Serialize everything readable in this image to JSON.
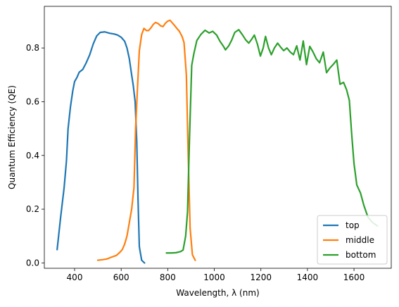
{
  "chart_data": {
    "type": "line",
    "title": "",
    "xlabel": "Wavelength, λ (nm)",
    "ylabel": "Quantum Efficiency (QE)",
    "xlim": [
      270,
      1760
    ],
    "ylim": [
      -0.02,
      0.955
    ],
    "xticks": [
      400,
      600,
      800,
      1000,
      1200,
      1400,
      1600
    ],
    "yticks": [
      0.0,
      0.2,
      0.4,
      0.6,
      0.8
    ],
    "xtick_labels": [
      "400",
      "600",
      "800",
      "1000",
      "1200",
      "1400",
      "1600"
    ],
    "ytick_labels": [
      "0.0",
      "0.2",
      "0.4",
      "0.6",
      "0.8"
    ],
    "grid": false,
    "legend_position": "lower-right",
    "series": [
      {
        "name": "top",
        "color": "#1f77b4",
        "points": [
          [
            325,
            0.05
          ],
          [
            340,
            0.17
          ],
          [
            355,
            0.28
          ],
          [
            365,
            0.38
          ],
          [
            372,
            0.5
          ],
          [
            382,
            0.58
          ],
          [
            392,
            0.64
          ],
          [
            400,
            0.675
          ],
          [
            410,
            0.69
          ],
          [
            420,
            0.71
          ],
          [
            435,
            0.72
          ],
          [
            450,
            0.745
          ],
          [
            465,
            0.775
          ],
          [
            480,
            0.815
          ],
          [
            495,
            0.845
          ],
          [
            510,
            0.858
          ],
          [
            530,
            0.86
          ],
          [
            550,
            0.855
          ],
          [
            570,
            0.852
          ],
          [
            585,
            0.848
          ],
          [
            600,
            0.84
          ],
          [
            615,
            0.825
          ],
          [
            625,
            0.8
          ],
          [
            635,
            0.76
          ],
          [
            645,
            0.7
          ],
          [
            652,
            0.66
          ],
          [
            660,
            0.6
          ],
          [
            667,
            0.45
          ],
          [
            672,
            0.25
          ],
          [
            678,
            0.06
          ],
          [
            688,
            0.01
          ],
          [
            700,
            0.0
          ]
        ]
      },
      {
        "name": "middle",
        "color": "#ff7f0e",
        "points": [
          [
            500,
            0.01
          ],
          [
            520,
            0.012
          ],
          [
            540,
            0.015
          ],
          [
            560,
            0.022
          ],
          [
            580,
            0.028
          ],
          [
            595,
            0.04
          ],
          [
            605,
            0.05
          ],
          [
            615,
            0.07
          ],
          [
            625,
            0.1
          ],
          [
            635,
            0.15
          ],
          [
            645,
            0.2
          ],
          [
            655,
            0.28
          ],
          [
            662,
            0.5
          ],
          [
            670,
            0.65
          ],
          [
            678,
            0.79
          ],
          [
            688,
            0.85
          ],
          [
            698,
            0.873
          ],
          [
            708,
            0.865
          ],
          [
            718,
            0.865
          ],
          [
            728,
            0.875
          ],
          [
            738,
            0.888
          ],
          [
            748,
            0.895
          ],
          [
            760,
            0.89
          ],
          [
            770,
            0.882
          ],
          [
            780,
            0.88
          ],
          [
            790,
            0.892
          ],
          [
            800,
            0.9
          ],
          [
            810,
            0.903
          ],
          [
            820,
            0.893
          ],
          [
            830,
            0.883
          ],
          [
            840,
            0.872
          ],
          [
            850,
            0.862
          ],
          [
            862,
            0.842
          ],
          [
            870,
            0.82
          ],
          [
            880,
            0.7
          ],
          [
            888,
            0.4
          ],
          [
            896,
            0.13
          ],
          [
            906,
            0.03
          ],
          [
            918,
            0.01
          ]
        ]
      },
      {
        "name": "bottom",
        "color": "#2ca02c",
        "points": [
          [
            795,
            0.037
          ],
          [
            815,
            0.037
          ],
          [
            835,
            0.038
          ],
          [
            855,
            0.042
          ],
          [
            866,
            0.048
          ],
          [
            877,
            0.1
          ],
          [
            885,
            0.19
          ],
          [
            893,
            0.45
          ],
          [
            903,
            0.735
          ],
          [
            912,
            0.778
          ],
          [
            925,
            0.828
          ],
          [
            942,
            0.85
          ],
          [
            960,
            0.866
          ],
          [
            978,
            0.856
          ],
          [
            993,
            0.862
          ],
          [
            1010,
            0.848
          ],
          [
            1025,
            0.824
          ],
          [
            1038,
            0.808
          ],
          [
            1048,
            0.793
          ],
          [
            1062,
            0.808
          ],
          [
            1075,
            0.83
          ],
          [
            1088,
            0.858
          ],
          [
            1105,
            0.868
          ],
          [
            1120,
            0.85
          ],
          [
            1135,
            0.83
          ],
          [
            1148,
            0.818
          ],
          [
            1160,
            0.832
          ],
          [
            1172,
            0.848
          ],
          [
            1185,
            0.815
          ],
          [
            1198,
            0.77
          ],
          [
            1210,
            0.8
          ],
          [
            1220,
            0.843
          ],
          [
            1233,
            0.8
          ],
          [
            1245,
            0.775
          ],
          [
            1258,
            0.8
          ],
          [
            1272,
            0.818
          ],
          [
            1285,
            0.803
          ],
          [
            1298,
            0.79
          ],
          [
            1312,
            0.8
          ],
          [
            1326,
            0.785
          ],
          [
            1340,
            0.775
          ],
          [
            1354,
            0.808
          ],
          [
            1368,
            0.755
          ],
          [
            1382,
            0.826
          ],
          [
            1396,
            0.738
          ],
          [
            1410,
            0.806
          ],
          [
            1424,
            0.785
          ],
          [
            1438,
            0.76
          ],
          [
            1452,
            0.745
          ],
          [
            1468,
            0.785
          ],
          [
            1482,
            0.708
          ],
          [
            1496,
            0.725
          ],
          [
            1512,
            0.74
          ],
          [
            1526,
            0.755
          ],
          [
            1540,
            0.665
          ],
          [
            1555,
            0.672
          ],
          [
            1568,
            0.645
          ],
          [
            1580,
            0.605
          ],
          [
            1590,
            0.48
          ],
          [
            1600,
            0.37
          ],
          [
            1612,
            0.29
          ],
          [
            1628,
            0.26
          ],
          [
            1642,
            0.215
          ],
          [
            1660,
            0.17
          ],
          [
            1680,
            0.15
          ],
          [
            1700,
            0.138
          ]
        ]
      }
    ]
  }
}
